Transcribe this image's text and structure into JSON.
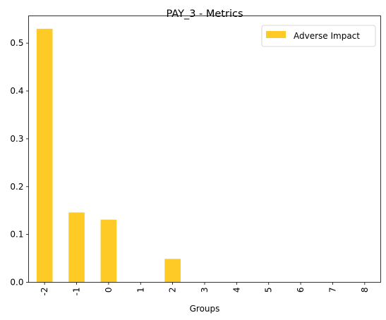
{
  "chart_data": {
    "type": "bar",
    "title": "PAY_3 - Metrics",
    "xlabel": "Groups",
    "ylabel": "",
    "categories": [
      "-2",
      "-1",
      "0",
      "1",
      "2",
      "3",
      "4",
      "5",
      "6",
      "7",
      "8"
    ],
    "series": [
      {
        "name": "Adverse Impact",
        "color": "#fdca26",
        "values": [
          0.53,
          0.146,
          0.131,
          0.0,
          0.049,
          0.0,
          0.0,
          0.0,
          0.0,
          0.0,
          0.0
        ]
      }
    ],
    "ylim": [
      0,
      0.557
    ],
    "yticks": [
      "0.0",
      "0.1",
      "0.2",
      "0.3",
      "0.4",
      "0.5"
    ],
    "grid": false,
    "legend_position": "upper right",
    "x_tick_rotation": "vertical"
  }
}
